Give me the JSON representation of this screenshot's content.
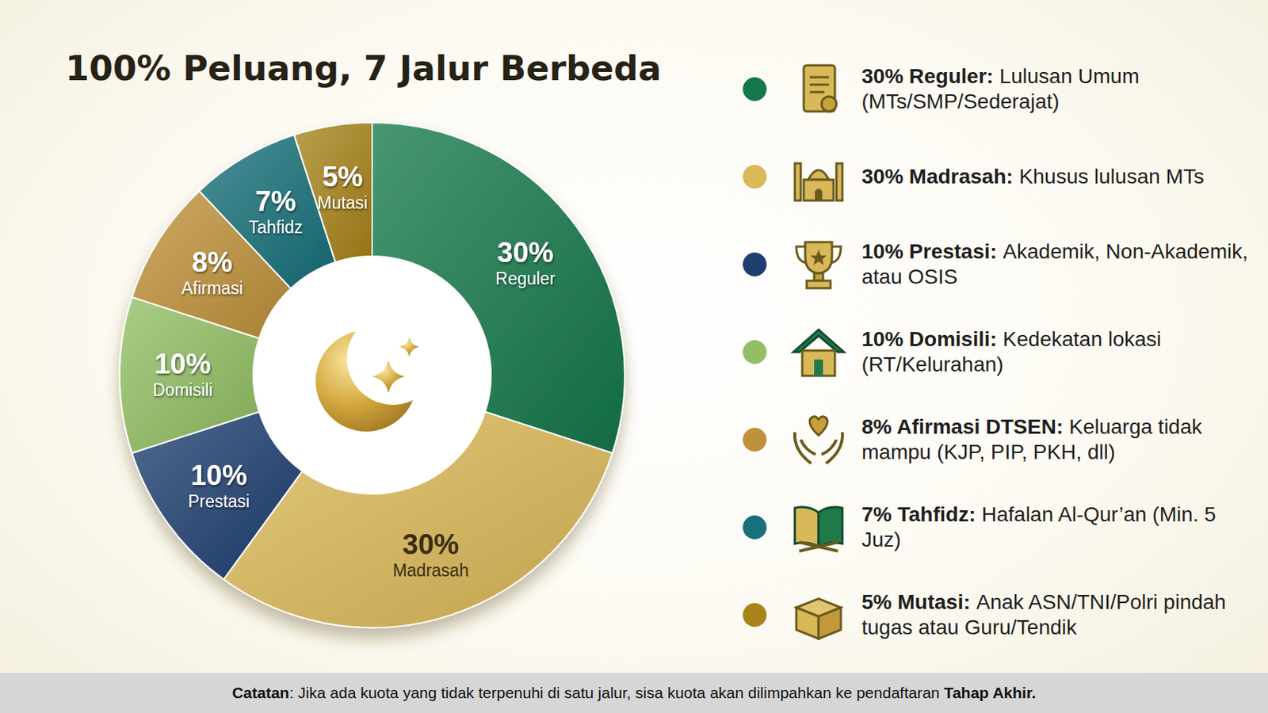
{
  "chart_data": {
    "type": "donut",
    "title": "100% Peluang, 7 Jalur Berbeda",
    "categories": [
      "Reguler",
      "Madrasah",
      "Prestasi",
      "Domisili",
      "Afirmasi",
      "Tahfidz",
      "Mutasi"
    ],
    "values": [
      30,
      30,
      10,
      10,
      8,
      7,
      5
    ],
    "value_labels": [
      "30%",
      "30%",
      "10%",
      "10%",
      "8%",
      "7%",
      "5%"
    ],
    "colors": [
      "#14784a",
      "#dbb957",
      "#1d3f70",
      "#92bf62",
      "#c0913a",
      "#17707a",
      "#a8841a"
    ],
    "data_labels": true,
    "legend": "right",
    "legend_entries": [
      {
        "title": "30% Reguler:",
        "text": "Lulusan Umum (MTs/SMP/Sederajat)"
      },
      {
        "title": "30% Madrasah:",
        "text": "Khusus lulusan MTs"
      },
      {
        "title": "10% Prestasi:",
        "text": "Akademik, Non-Akademik, atau OSIS"
      },
      {
        "title": "10% Domisili:",
        "text": "Kedekatan lokasi (RT/Kelurahan)"
      },
      {
        "title": "8% Afirmasi DTSEN:",
        "text": "Keluarga tidak mampu (KJP, PIP, PKH, dll)"
      },
      {
        "title": "7% Tahfidz:",
        "text": "Hafalan Al-Qur’an (Min. 5 Juz)"
      },
      {
        "title": "5% Mutasi:",
        "text": "Anak ASN/TNI/Polri pindah tugas atau Guru/Tendik"
      }
    ],
    "note": [
      "Catatan",
      ": Jika ada kuota yang tidak terpenuhi di satu jalur, sisa kuota akan dilimpahkan ke pendaftaran ",
      "Tahap Akhir."
    ]
  }
}
